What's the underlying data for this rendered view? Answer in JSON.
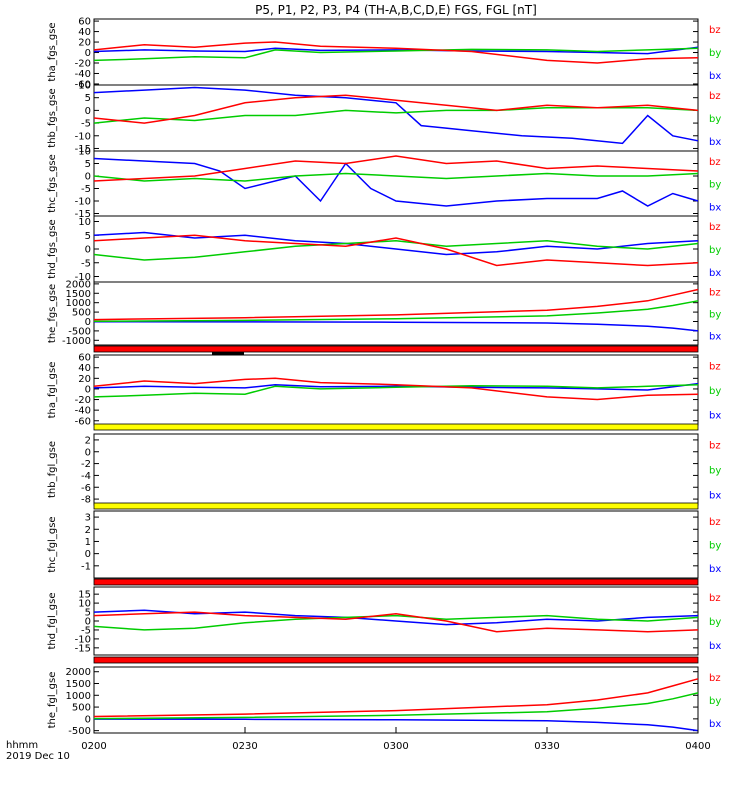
{
  "chart_data": {
    "title": "P5, P1, P2, P3, P4 (TH-A,B,C,D,E) FGS, FGL [nT]",
    "type": "line",
    "x_ticks": [
      "0200",
      "0230",
      "0300",
      "0330",
      "0400"
    ],
    "x_range_minutes": [
      0,
      120
    ],
    "footer_label": "hhmm",
    "footer_date": "2019 Dec 10",
    "colors": {
      "bx": "#0000ff",
      "by": "#00cc00",
      "bz": "#ff0000",
      "bar_red": "#ff0000",
      "bar_yellow": "#ffff00"
    },
    "panels": [
      {
        "ylabel": "tha_fgs_gse",
        "ylim": [
          -62,
          64
        ],
        "yticks": [
          60,
          40,
          20,
          0,
          -20,
          -40,
          -60
        ],
        "legend": [
          "bz",
          "by",
          "bx"
        ],
        "series": [
          {
            "name": "bx",
            "color": "#0000ff",
            "x": [
              0,
              10,
              20,
              30,
              36,
              45,
              60,
              75,
              90,
              100,
              110,
              120
            ],
            "y": [
              2,
              5,
              3,
              2,
              8,
              4,
              5,
              3,
              2,
              0,
              -2,
              10
            ]
          },
          {
            "name": "by",
            "color": "#00cc00",
            "x": [
              0,
              10,
              20,
              30,
              36,
              45,
              60,
              75,
              90,
              100,
              110,
              120
            ],
            "y": [
              -15,
              -12,
              -8,
              -10,
              5,
              0,
              3,
              6,
              5,
              2,
              5,
              8
            ]
          },
          {
            "name": "bz",
            "color": "#ff0000",
            "x": [
              0,
              10,
              20,
              30,
              36,
              45,
              60,
              75,
              90,
              100,
              110,
              120
            ],
            "y": [
              5,
              15,
              10,
              18,
              20,
              12,
              8,
              2,
              -15,
              -20,
              -12,
              -10
            ]
          }
        ]
      },
      {
        "ylabel": "thb_fgs_gse",
        "ylim": [
          -16,
          10
        ],
        "yticks": [
          10,
          5,
          0,
          -5,
          -10,
          -15
        ],
        "legend": [
          "bz",
          "by",
          "bx"
        ],
        "series": [
          {
            "name": "bx",
            "color": "#0000ff",
            "x": [
              0,
              10,
              20,
              30,
              40,
              50,
              60,
              65,
              75,
              85,
              95,
              105,
              110,
              115,
              120
            ],
            "y": [
              7,
              8,
              9,
              8,
              6,
              5,
              3,
              -6,
              -8,
              -10,
              -11,
              -13,
              -2,
              -10,
              -12
            ]
          },
          {
            "name": "by",
            "color": "#00cc00",
            "x": [
              0,
              10,
              20,
              30,
              40,
              50,
              60,
              70,
              80,
              90,
              100,
              110,
              120
            ],
            "y": [
              -5,
              -3,
              -4,
              -2,
              -2,
              0,
              -1,
              0,
              0,
              1,
              1,
              1,
              0
            ]
          },
          {
            "name": "bz",
            "color": "#ff0000",
            "x": [
              0,
              10,
              20,
              30,
              40,
              50,
              60,
              70,
              80,
              90,
              100,
              110,
              120
            ],
            "y": [
              -3,
              -5,
              -2,
              3,
              5,
              6,
              4,
              2,
              0,
              2,
              1,
              2,
              0
            ]
          }
        ]
      },
      {
        "ylabel": "thc_fgs_gse",
        "ylim": [
          -16,
          10
        ],
        "yticks": [
          10,
          5,
          0,
          -5,
          -10,
          -15
        ],
        "legend": [
          "bz",
          "by",
          "bx"
        ],
        "series": [
          {
            "name": "bx",
            "color": "#0000ff",
            "x": [
              0,
              10,
              20,
              25,
              30,
              40,
              45,
              50,
              55,
              60,
              70,
              80,
              90,
              100,
              105,
              110,
              115,
              120
            ],
            "y": [
              7,
              6,
              5,
              2,
              -5,
              0,
              -10,
              5,
              -5,
              -10,
              -12,
              -10,
              -9,
              -9,
              -6,
              -12,
              -7,
              -10
            ]
          },
          {
            "name": "by",
            "color": "#00cc00",
            "x": [
              0,
              10,
              20,
              30,
              40,
              50,
              60,
              70,
              80,
              90,
              100,
              110,
              120
            ],
            "y": [
              0,
              -2,
              -1,
              -2,
              0,
              1,
              0,
              -1,
              0,
              1,
              0,
              0,
              1
            ]
          },
          {
            "name": "bz",
            "color": "#ff0000",
            "x": [
              0,
              10,
              20,
              30,
              40,
              50,
              60,
              70,
              80,
              90,
              100,
              110,
              120
            ],
            "y": [
              -2,
              -1,
              0,
              3,
              6,
              5,
              8,
              5,
              6,
              3,
              4,
              3,
              2
            ]
          }
        ]
      },
      {
        "ylabel": "thd_fgs_gse",
        "ylim": [
          -12,
          12
        ],
        "yticks": [
          10,
          5,
          0,
          -5,
          -10
        ],
        "legend": [
          "bz",
          "by",
          "bx"
        ],
        "series": [
          {
            "name": "bx",
            "color": "#0000ff",
            "x": [
              0,
              10,
              20,
              30,
              40,
              50,
              60,
              70,
              80,
              90,
              100,
              110,
              120
            ],
            "y": [
              5,
              6,
              4,
              5,
              3,
              2,
              0,
              -2,
              -1,
              1,
              0,
              2,
              3
            ]
          },
          {
            "name": "by",
            "color": "#00cc00",
            "x": [
              0,
              10,
              20,
              30,
              40,
              50,
              60,
              70,
              80,
              90,
              100,
              110,
              120
            ],
            "y": [
              -2,
              -4,
              -3,
              -1,
              1,
              2,
              3,
              1,
              2,
              3,
              1,
              0,
              2
            ]
          },
          {
            "name": "bz",
            "color": "#ff0000",
            "x": [
              0,
              10,
              20,
              30,
              40,
              50,
              60,
              70,
              80,
              90,
              100,
              110,
              120
            ],
            "y": [
              3,
              4,
              5,
              3,
              2,
              1,
              4,
              0,
              -6,
              -4,
              -5,
              -6,
              -5
            ]
          }
        ]
      },
      {
        "ylabel": "the_fgs_gse",
        "ylim": [
          -1250,
          2100
        ],
        "yticks": [
          2000,
          1500,
          1000,
          500,
          0,
          -500,
          -1000
        ],
        "legend": [
          "bz",
          "by",
          "bx"
        ],
        "series": [
          {
            "name": "bx",
            "color": "#0000ff",
            "x": [
              0,
              30,
              60,
              90,
              100,
              110,
              115,
              120
            ],
            "y": [
              -10,
              -20,
              -40,
              -80,
              -150,
              -250,
              -350,
              -500
            ]
          },
          {
            "name": "by",
            "color": "#00cc00",
            "x": [
              0,
              30,
              60,
              90,
              100,
              110,
              115,
              120
            ],
            "y": [
              10,
              60,
              150,
              300,
              450,
              650,
              850,
              1100
            ]
          },
          {
            "name": "bz",
            "color": "#ff0000",
            "x": [
              0,
              30,
              60,
              90,
              100,
              110,
              115,
              120
            ],
            "y": [
              100,
              200,
              350,
              600,
              800,
              1100,
              1400,
              1700
            ]
          }
        ]
      },
      {
        "ylabel": "tha_fgl_gse",
        "ylim": [
          -68,
          64
        ],
        "yticks": [
          60,
          40,
          20,
          0,
          -20,
          -40,
          -60
        ],
        "legend": [
          "bz",
          "by",
          "bx"
        ],
        "series": [
          {
            "name": "bx",
            "color": "#0000ff",
            "x": [
              0,
              10,
              20,
              30,
              36,
              45,
              60,
              75,
              90,
              100,
              110,
              120
            ],
            "y": [
              2,
              5,
              3,
              2,
              8,
              4,
              5,
              3,
              2,
              0,
              -2,
              10
            ]
          },
          {
            "name": "by",
            "color": "#00cc00",
            "x": [
              0,
              10,
              20,
              30,
              36,
              45,
              60,
              75,
              90,
              100,
              110,
              120
            ],
            "y": [
              -15,
              -12,
              -8,
              -10,
              5,
              0,
              3,
              6,
              5,
              2,
              5,
              8
            ]
          },
          {
            "name": "bz",
            "color": "#ff0000",
            "x": [
              0,
              10,
              20,
              30,
              36,
              45,
              60,
              75,
              90,
              100,
              110,
              120
            ],
            "y": [
              5,
              15,
              10,
              18,
              20,
              12,
              8,
              2,
              -15,
              -20,
              -12,
              -10
            ]
          }
        ]
      },
      {
        "ylabel": "thb_fgl_gse",
        "ylim": [
          -9,
          3
        ],
        "yticks": [
          2,
          0,
          -2,
          -4,
          -6,
          -8
        ],
        "legend": [
          "bz",
          "by",
          "bx"
        ],
        "series": []
      },
      {
        "ylabel": "thc_fgl_gse",
        "ylim": [
          -2,
          3.5
        ],
        "yticks": [
          3,
          2,
          1,
          0,
          -1
        ],
        "legend": [
          "bz",
          "by",
          "bx"
        ],
        "series": []
      },
      {
        "ylabel": "thd_fgl_gse",
        "ylim": [
          -19,
          19
        ],
        "yticks": [
          15,
          10,
          5,
          0,
          -5,
          -10,
          -15
        ],
        "legend": [
          "bz",
          "by",
          "bx"
        ],
        "series": [
          {
            "name": "bx",
            "color": "#0000ff",
            "x": [
              0,
              10,
              20,
              30,
              40,
              50,
              60,
              70,
              80,
              90,
              100,
              110,
              120
            ],
            "y": [
              5,
              6,
              4,
              5,
              3,
              2,
              0,
              -2,
              -1,
              1,
              0,
              2,
              3
            ]
          },
          {
            "name": "by",
            "color": "#00cc00",
            "x": [
              0,
              10,
              20,
              30,
              40,
              50,
              60,
              70,
              80,
              90,
              100,
              110,
              120
            ],
            "y": [
              -3,
              -5,
              -4,
              -1,
              1,
              2,
              3,
              1,
              2,
              3,
              1,
              0,
              2
            ]
          },
          {
            "name": "bz",
            "color": "#ff0000",
            "x": [
              0,
              10,
              20,
              30,
              40,
              50,
              60,
              70,
              80,
              90,
              100,
              110,
              120
            ],
            "y": [
              3,
              4,
              5,
              3,
              2,
              1,
              4,
              0,
              -6,
              -4,
              -5,
              -6,
              -5
            ]
          }
        ]
      },
      {
        "ylabel": "the_fgl_gse",
        "ylim": [
          -600,
          2200
        ],
        "yticks": [
          2000,
          1500,
          1000,
          500,
          0,
          -500
        ],
        "legend": [
          "bz",
          "by",
          "bx"
        ],
        "series": [
          {
            "name": "bx",
            "color": "#0000ff",
            "x": [
              0,
              30,
              60,
              90,
              100,
              110,
              115,
              120
            ],
            "y": [
              -10,
              -20,
              -40,
              -80,
              -150,
              -250,
              -350,
              -500
            ]
          },
          {
            "name": "by",
            "color": "#00cc00",
            "x": [
              0,
              30,
              60,
              90,
              100,
              110,
              115,
              120
            ],
            "y": [
              10,
              60,
              150,
              300,
              450,
              650,
              850,
              1100
            ]
          },
          {
            "name": "bz",
            "color": "#ff0000",
            "x": [
              0,
              30,
              60,
              90,
              100,
              110,
              115,
              120
            ],
            "y": [
              100,
              200,
              350,
              600,
              800,
              1100,
              1400,
              1700
            ]
          }
        ]
      }
    ]
  }
}
